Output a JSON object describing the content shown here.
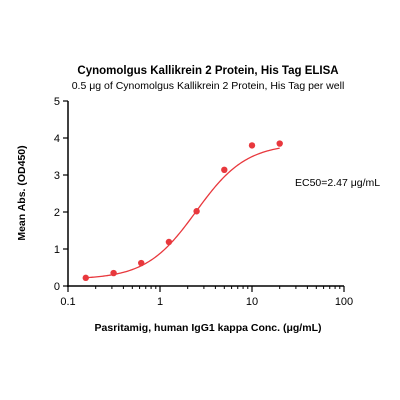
{
  "chart_data": {
    "type": "scatter",
    "title": "Cynomolgus Kallikrein 2 Protein, His Tag ELISA",
    "subtitle": "0.5 μg of Cynomolgus Kallikrein 2 Protein, His Tag per well",
    "xlabel": "Pasritamig, human IgG1 kappa Conc. (μg/mL)",
    "ylabel": "Mean Abs. (OD450)",
    "x_scale": "log",
    "xlim": [
      0.1,
      100
    ],
    "ylim": [
      0,
      5
    ],
    "x_ticks": [
      0.1,
      1,
      10,
      100
    ],
    "x_tick_labels": [
      "0.1",
      "1",
      "10",
      "100"
    ],
    "y_ticks": [
      0,
      1,
      2,
      3,
      4,
      5
    ],
    "y_tick_labels": [
      "0",
      "1",
      "2",
      "3",
      "4",
      "5"
    ],
    "grid": false,
    "series": [
      {
        "points": [
          {
            "x": 0.156,
            "y": 0.22
          },
          {
            "x": 0.313,
            "y": 0.35
          },
          {
            "x": 0.625,
            "y": 0.62
          },
          {
            "x": 1.25,
            "y": 1.19
          },
          {
            "x": 2.5,
            "y": 2.02
          },
          {
            "x": 5,
            "y": 3.14
          },
          {
            "x": 10,
            "y": 3.8
          },
          {
            "x": 20,
            "y": 3.85
          }
        ],
        "fit": {
          "model": "4PL",
          "bottom": 0.18,
          "top": 3.85,
          "ec50": 2.47,
          "hill": 1.6,
          "x_range": [
            0.15,
            20
          ]
        },
        "color": "#e8383d"
      }
    ],
    "annotation": "EC50=2.47 μg/mL"
  }
}
